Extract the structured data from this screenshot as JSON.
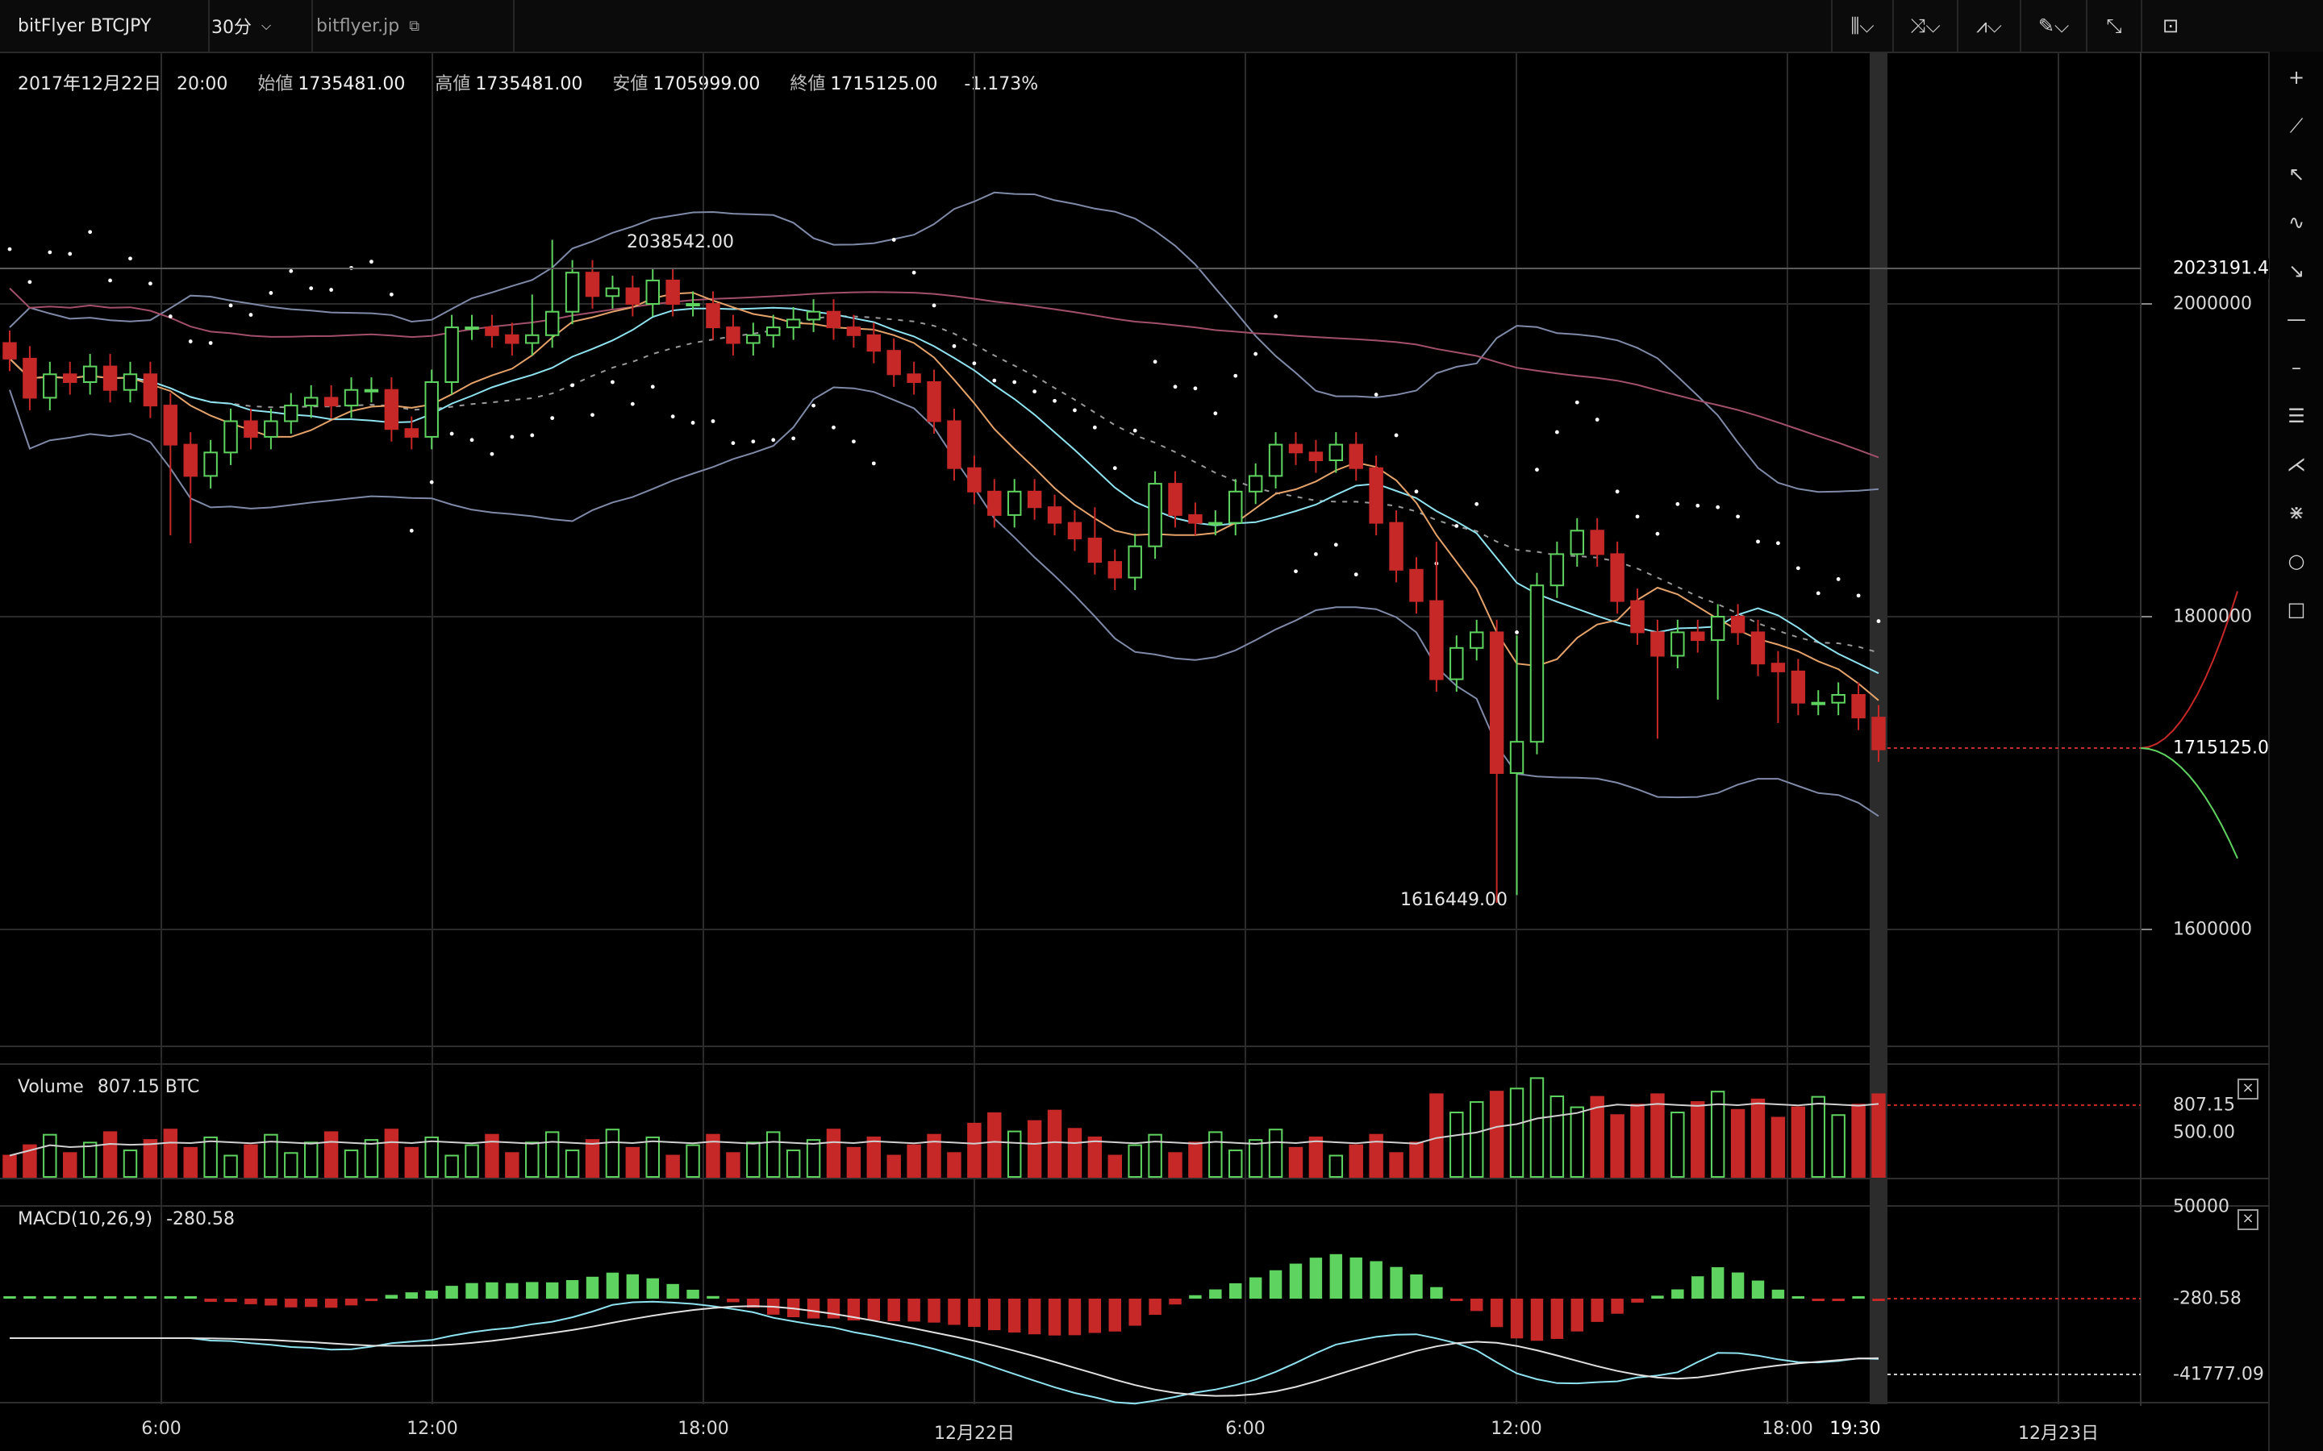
{
  "toolbar": {
    "symbol": "bitFlyer BTCJPY",
    "interval": "30分",
    "site_link": "bitflyer.jp",
    "right_icons": [
      "candles-icon",
      "indicators-icon",
      "chart-type-icon",
      "draw-icon",
      "fullscreen-icon",
      "chart-icon"
    ]
  },
  "ohlc": {
    "date": "2017年12月22日",
    "time": "20:00",
    "open_label": "始値",
    "open": "1735481.00",
    "high_label": "高値",
    "high": "1735481.00",
    "low_label": "安値",
    "low": "1705999.00",
    "close_label": "終値",
    "close": "1715125.00",
    "change": "-1.173%"
  },
  "annotations": {
    "max_label": "2038542.00",
    "min_label": "1616449.00"
  },
  "price_axis": {
    "ticks": [
      "2000000",
      "1800000",
      "1600000"
    ],
    "high_line": "2023191.4",
    "last": "1715125.0"
  },
  "volume_pane": {
    "label": "Volume",
    "value": "807.15 BTC",
    "ticks": [
      "807.15",
      "500.00"
    ]
  },
  "macd_pane": {
    "label": "MACD(10,26,9)",
    "value": "-280.58",
    "ticks": [
      "50000",
      "-280.58",
      "-41777.09"
    ]
  },
  "time_axis": [
    "6:00",
    "12:00",
    "18:00",
    "12月22日",
    "6:00",
    "12:00",
    "18:00",
    "19:30",
    "12月23日"
  ],
  "colors": {
    "up": "#5fd35f",
    "down": "#c62828",
    "bg": "#000000",
    "grid": "#2b2b2b"
  },
  "chart_data": {
    "type": "candlestick",
    "x_range": [
      "12月21日 03:00",
      "12月22日 20:00"
    ],
    "interval": "30分",
    "ylim": [
      1480000,
      2080000
    ],
    "ohlc_last": {
      "open": 1735481,
      "high": 1735481,
      "low": 1705999,
      "close": 1715125
    },
    "high_value": 2038542,
    "low_value": 1616449,
    "volume_last": 807.15,
    "macd_last": -280.58,
    "macd_signal_last": -41777.09
  }
}
